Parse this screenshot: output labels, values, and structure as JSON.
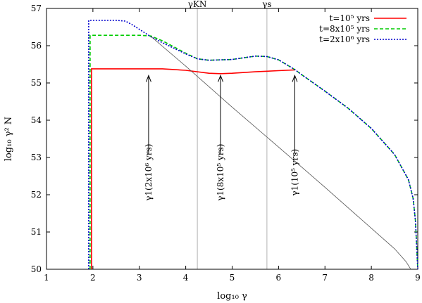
{
  "chart_data": {
    "type": "line",
    "xlabel": "log₁₀ γ",
    "ylabel": "log₁₀ γ² N",
    "xlim": [
      1,
      9
    ],
    "ylim": [
      50,
      57
    ],
    "xticks": [
      "1",
      "2",
      "3",
      "4",
      "5",
      "6",
      "7",
      "8",
      "9"
    ],
    "yticks": [
      "50",
      "51",
      "52",
      "53",
      "54",
      "55",
      "56",
      "57"
    ],
    "grid": false,
    "legend_position": "top-right",
    "vertical_markers": [
      {
        "label": "γKN",
        "x": 4.25
      },
      {
        "label": "γs",
        "x": 5.75
      }
    ],
    "series": [
      {
        "name": "t=10⁵ yrs",
        "color": "#ff0000",
        "dash": "",
        "x": [
          1.97,
          1.97,
          2.0,
          3.0,
          3.5,
          4.0,
          4.5,
          4.75,
          5.0,
          5.5,
          6.0,
          6.35
        ],
        "y": [
          50.0,
          55.38,
          55.38,
          55.38,
          55.38,
          55.34,
          55.26,
          55.25,
          55.26,
          55.3,
          55.33,
          55.35
        ]
      },
      {
        "name": "t=8x10⁵ yrs",
        "color": "#00cc00",
        "dash": "5,3",
        "x": [
          1.94,
          1.94,
          2.0,
          2.5,
          3.0,
          3.25,
          3.5,
          4.0,
          4.25,
          4.5,
          5.0,
          5.5,
          5.75,
          6.0,
          6.35,
          6.5,
          7.0,
          7.5,
          8.0,
          8.5,
          8.8,
          8.9,
          8.95,
          9.0
        ],
        "y": [
          50.0,
          56.28,
          56.28,
          56.28,
          56.28,
          56.26,
          56.13,
          55.8,
          55.65,
          55.61,
          55.63,
          55.72,
          55.71,
          55.62,
          55.36,
          55.22,
          54.78,
          54.32,
          53.78,
          53.08,
          52.4,
          51.9,
          51.3,
          50.0
        ]
      },
      {
        "name": "t=2x10⁶ yrs",
        "color": "#0000cc",
        "dash": "2,2",
        "x": [
          1.91,
          1.91,
          2.0,
          2.5,
          2.7,
          2.85,
          3.0,
          3.25,
          3.5,
          4.0,
          4.25,
          4.5,
          5.0,
          5.5,
          5.75,
          6.0,
          6.35,
          6.5,
          7.0,
          7.5,
          8.0,
          8.5,
          8.8,
          8.9,
          8.95,
          9.0
        ],
        "y": [
          50.0,
          56.68,
          56.68,
          56.68,
          56.66,
          56.56,
          56.44,
          56.24,
          56.08,
          55.78,
          55.65,
          55.61,
          55.63,
          55.72,
          55.71,
          55.62,
          55.36,
          55.22,
          54.78,
          54.32,
          53.78,
          53.08,
          52.4,
          51.9,
          51.3,
          50.0
        ]
      },
      {
        "name": "",
        "color": "#555555",
        "dash": "",
        "x": [
          3.25,
          4.0,
          5.0,
          6.0,
          7.0,
          8.0,
          8.5,
          8.75,
          8.85
        ],
        "y": [
          56.25,
          55.45,
          54.35,
          53.28,
          52.2,
          51.1,
          50.55,
          50.2,
          50.0
        ]
      }
    ],
    "annotations": [
      {
        "text": "γ1(2x10⁶ yrs)",
        "x": 3.2,
        "y_from": 53.1,
        "y_to": 55.2,
        "label_y": 52.6
      },
      {
        "text": "γ1(8x10⁵ yrs)",
        "x": 4.75,
        "y_from": 53.1,
        "y_to": 55.2,
        "label_y": 52.6
      },
      {
        "text": "γ1(10⁵ yrs)",
        "x": 6.35,
        "y_from": 53.1,
        "y_to": 55.2,
        "label_y": 52.6
      }
    ]
  }
}
